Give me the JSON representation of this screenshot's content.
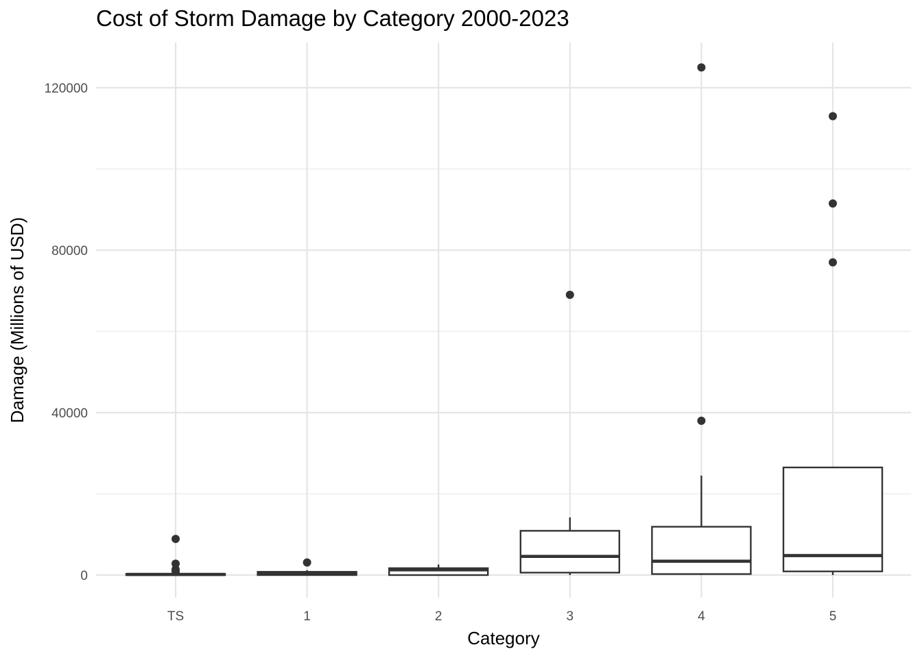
{
  "chart_data": {
    "type": "box",
    "title": "Cost of Storm Damage by Category 2000-2023",
    "xlabel": "Category",
    "ylabel": "Damage (Millions of USD)",
    "categories": [
      "TS",
      "1",
      "2",
      "3",
      "4",
      "5"
    ],
    "yticks": [
      0,
      40000,
      80000,
      120000
    ],
    "ytick_labels": [
      "0",
      "40000",
      "80000",
      "120000"
    ],
    "ylim": [
      -5000,
      131000
    ],
    "grid": true,
    "boxes": [
      {
        "category": "TS",
        "whisker_low": 0,
        "q1": 0,
        "median": 150,
        "q3": 300,
        "whisker_high": 700,
        "outliers": [
          8900,
          2800,
          1400,
          900
        ]
      },
      {
        "category": "1",
        "whisker_low": 0,
        "q1": 0,
        "median": 400,
        "q3": 800,
        "whisker_high": 1200,
        "outliers": [
          3100
        ]
      },
      {
        "category": "2",
        "whisker_low": 0,
        "q1": 0,
        "median": 1300,
        "q3": 1700,
        "whisker_high": 2600,
        "outliers": []
      },
      {
        "category": "3",
        "whisker_low": 0,
        "q1": 600,
        "median": 4600,
        "q3": 10900,
        "whisker_high": 14200,
        "outliers": [
          69000
        ]
      },
      {
        "category": "4",
        "whisker_low": 0,
        "q1": 250,
        "median": 3400,
        "q3": 11900,
        "whisker_high": 24500,
        "outliers": [
          38000,
          125000
        ]
      },
      {
        "category": "5",
        "whisker_low": 0,
        "q1": 900,
        "median": 4800,
        "q3": 26500,
        "whisker_high": 26500,
        "outliers": [
          113000,
          91500,
          77000
        ]
      }
    ]
  }
}
